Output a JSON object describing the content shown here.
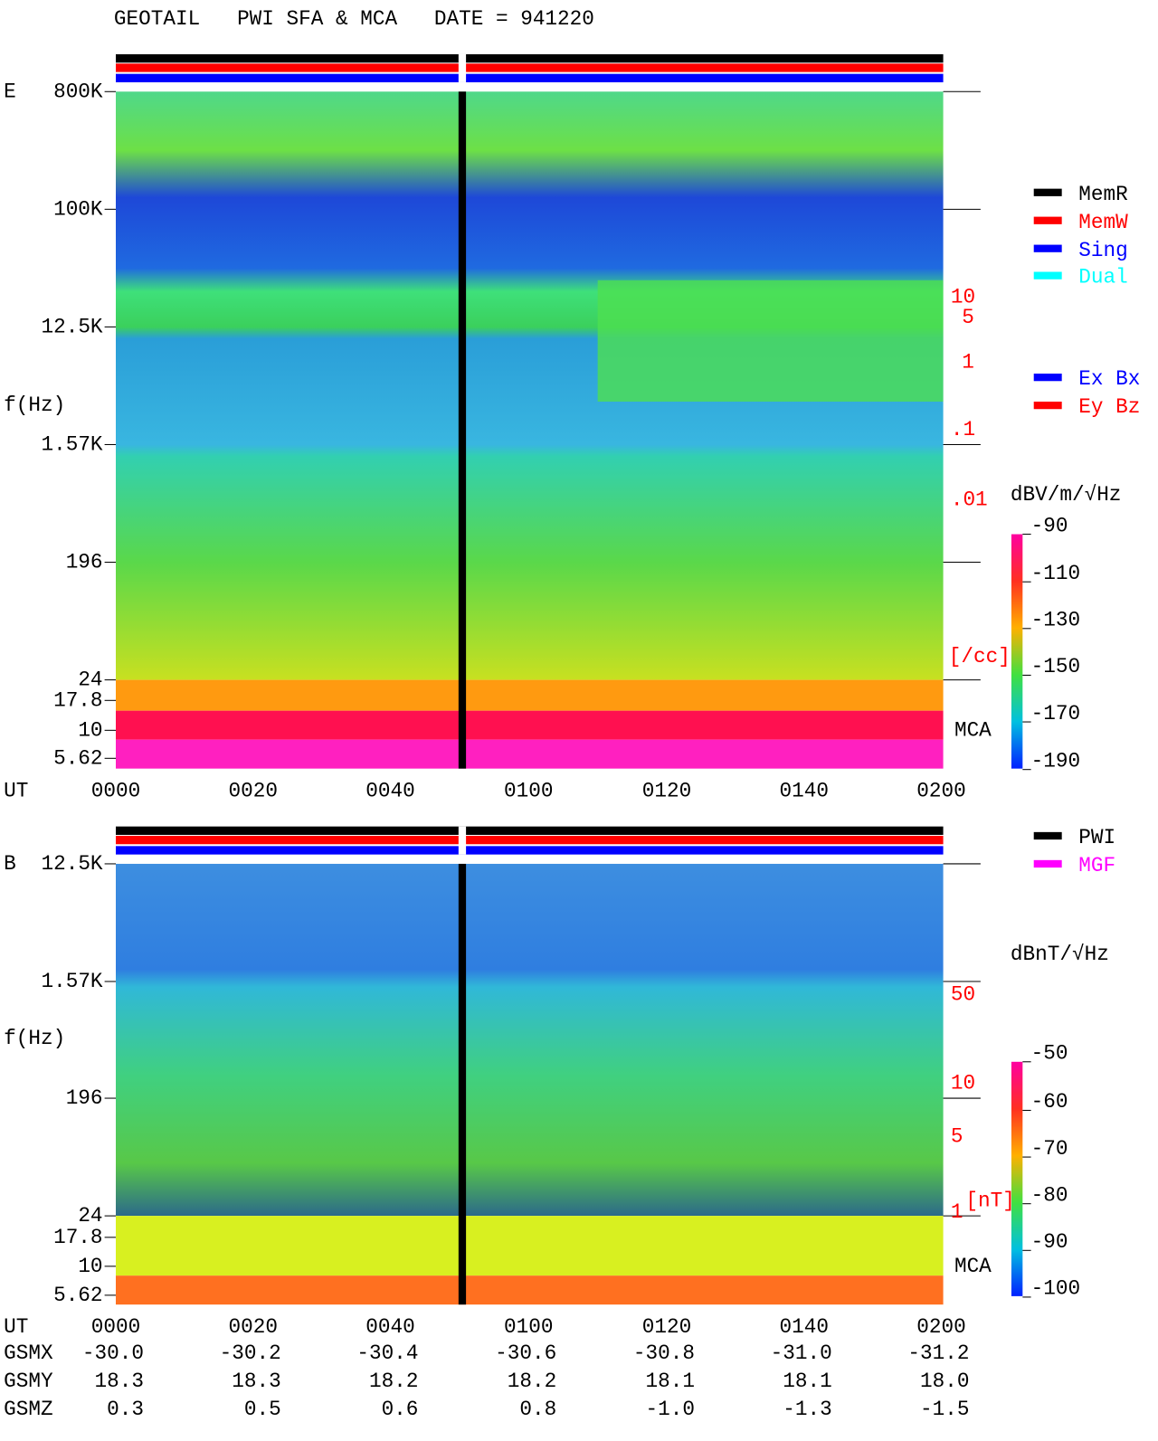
{
  "header": {
    "title": "GEOTAIL   PWI SFA & MCA   DATE = 941220"
  },
  "panels": [
    {
      "label": "E",
      "y_axis_label": "f(Hz)",
      "y_ticks": [
        "800K",
        "100K",
        "12.5K",
        "1.57K",
        "196",
        "24",
        "17.8",
        "10",
        "5.62"
      ],
      "right_labels": [
        "10",
        "5",
        "1",
        ".1",
        ".01",
        "[/cc]"
      ],
      "mca_label": "MCA",
      "x_axis_label": "UT",
      "x_ticks": [
        "0000",
        "0020",
        "0040",
        "0100",
        "0120",
        "0140",
        "0200"
      ],
      "colorbar": {
        "title": "dBV/m/√Hz",
        "ticks": [
          "-90",
          "-110",
          "-130",
          "-150",
          "-170",
          "-190"
        ]
      },
      "legend": [
        {
          "text": "MemR",
          "color": "#000000"
        },
        {
          "text": "MemW",
          "color": "#ff0000"
        },
        {
          "text": "Sing",
          "color": "#0000ff"
        },
        {
          "text": "Dual",
          "color": "#00ffff"
        },
        {
          "text": "Ex Bx",
          "color": "#0000ff"
        },
        {
          "text": "Ey Bz",
          "color": "#ff0000"
        }
      ]
    },
    {
      "label": "B",
      "y_axis_label": "f(Hz)",
      "y_ticks": [
        "12.5K",
        "1.57K",
        "196",
        "24",
        "17.8",
        "10",
        "5.62"
      ],
      "right_labels": [
        "50",
        "10",
        "5",
        "1",
        "[nT]"
      ],
      "mca_label": "MCA",
      "x_axis_label": "UT",
      "x_ticks": [
        "0000",
        "0020",
        "0040",
        "0100",
        "0120",
        "0140",
        "0200"
      ],
      "colorbar": {
        "title": "dBnT/√Hz",
        "ticks": [
          "-50",
          "-60",
          "-70",
          "-80",
          "-90",
          "-100"
        ]
      },
      "legend": [
        {
          "text": "PWI",
          "color": "#000000"
        },
        {
          "text": "MGF",
          "color": "#ff00ff"
        }
      ]
    }
  ],
  "footer": {
    "rows": [
      {
        "label": "GSMX",
        "values": [
          "-30.0",
          "-30.2",
          "-30.4",
          "-30.6",
          "-30.8",
          "-31.0",
          "-31.2"
        ]
      },
      {
        "label": "GSMY",
        "values": [
          "18.3",
          "18.3",
          "18.2",
          "18.2",
          "18.1",
          "18.1",
          "18.0"
        ]
      },
      {
        "label": "GSMZ",
        "values": [
          "0.3",
          "0.5",
          "0.6",
          "0.8",
          "-1.0",
          "-1.3",
          "-1.5"
        ]
      }
    ]
  }
}
